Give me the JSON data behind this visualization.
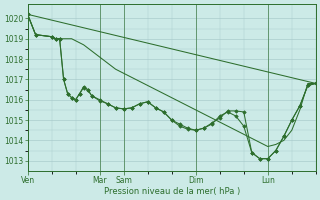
{
  "bg_color": "#cceae7",
  "grid_color": "#aacccc",
  "line_color": "#2d6e2d",
  "marker_color": "#2d6e2d",
  "xlabel": "Pression niveau de la mer( hPa )",
  "ylim": [
    1012.5,
    1020.7
  ],
  "yticks": [
    1013,
    1014,
    1015,
    1016,
    1017,
    1018,
    1019,
    1020
  ],
  "xtick_labels": [
    "Ven",
    "Mar",
    "Sam",
    "Dim",
    "Lun"
  ],
  "xtick_positions": [
    0,
    36,
    48,
    84,
    120
  ],
  "xlim": [
    0,
    144
  ],
  "line1": {
    "x": [
      0,
      144
    ],
    "y": [
      1020.2,
      1016.8
    ]
  },
  "line2_x": [
    0,
    4,
    12,
    14,
    16,
    18,
    20,
    22,
    24,
    26,
    28,
    30,
    32,
    36,
    40,
    44,
    48,
    52,
    56,
    60,
    64,
    68,
    72,
    76,
    80,
    84,
    88,
    92,
    96,
    100,
    104,
    108,
    112,
    116,
    120,
    124,
    128,
    132,
    136,
    140,
    144
  ],
  "line2_y": [
    1020.2,
    1019.2,
    1019.1,
    1019.0,
    1019.0,
    1019.0,
    1019.0,
    1019.0,
    1018.9,
    1018.8,
    1018.7,
    1018.55,
    1018.4,
    1018.1,
    1017.8,
    1017.5,
    1017.3,
    1017.1,
    1016.9,
    1016.7,
    1016.5,
    1016.3,
    1016.1,
    1015.9,
    1015.7,
    1015.5,
    1015.3,
    1015.1,
    1014.9,
    1014.7,
    1014.5,
    1014.3,
    1014.1,
    1013.9,
    1013.7,
    1013.8,
    1014.0,
    1014.5,
    1015.5,
    1016.8,
    1016.8
  ],
  "line3_x": [
    0,
    4,
    12,
    14,
    16,
    18,
    20,
    22,
    24,
    26,
    28,
    30,
    32,
    36,
    40,
    44,
    48,
    52,
    56,
    60,
    64,
    68,
    72,
    76,
    80,
    84,
    88,
    92,
    96,
    100,
    104,
    108,
    112,
    116,
    120,
    124,
    128,
    132,
    136,
    140,
    144
  ],
  "line3_y": [
    1020.2,
    1019.2,
    1019.1,
    1019.0,
    1019.0,
    1017.0,
    1016.3,
    1016.1,
    1016.0,
    1016.3,
    1016.6,
    1016.5,
    1016.2,
    1016.0,
    1015.8,
    1015.6,
    1015.55,
    1015.6,
    1015.8,
    1015.9,
    1015.6,
    1015.4,
    1015.0,
    1014.8,
    1014.6,
    1014.5,
    1014.6,
    1014.8,
    1015.2,
    1015.4,
    1015.2,
    1014.7,
    1013.4,
    1013.1,
    1013.1,
    1013.5,
    1014.2,
    1015.0,
    1015.7,
    1016.7,
    1016.8
  ],
  "line4_x": [
    0,
    4,
    12,
    14,
    16,
    18,
    20,
    22,
    24,
    26,
    28,
    30,
    32,
    36,
    40,
    44,
    48,
    52,
    56,
    60,
    64,
    68,
    72,
    76,
    80,
    84,
    88,
    92,
    96,
    100,
    104,
    108,
    112,
    116,
    120,
    124,
    128,
    132,
    136,
    140,
    144
  ],
  "line4_y": [
    1020.2,
    1019.2,
    1019.1,
    1019.0,
    1019.0,
    1017.0,
    1016.3,
    1016.1,
    1016.0,
    1016.3,
    1016.65,
    1016.5,
    1016.2,
    1015.95,
    1015.8,
    1015.6,
    1015.55,
    1015.6,
    1015.8,
    1015.9,
    1015.6,
    1015.4,
    1015.0,
    1014.7,
    1014.55,
    1014.5,
    1014.6,
    1014.85,
    1015.1,
    1015.45,
    1015.45,
    1015.4,
    1013.4,
    1013.1,
    1013.1,
    1013.5,
    1014.2,
    1015.0,
    1015.7,
    1016.7,
    1016.8
  ]
}
